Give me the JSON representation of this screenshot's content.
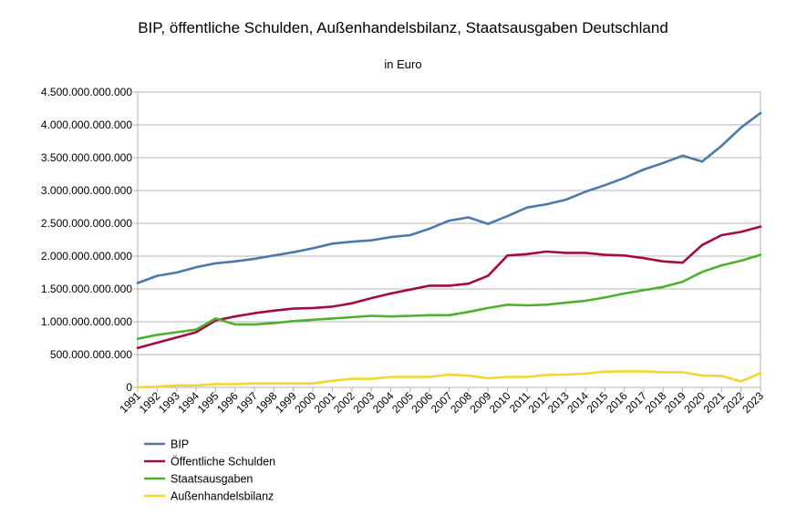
{
  "chart_data": {
    "type": "line",
    "title": "BIP, öffentliche Schulden, Außenhandelsbilanz, Staatsausgaben Deutschland",
    "subtitle": "in Euro",
    "xlabel": "",
    "ylabel": "",
    "ylim": [
      0,
      4500000000000
    ],
    "y_ticks": [
      0,
      500000000000,
      1000000000000,
      1500000000000,
      2000000000000,
      2500000000000,
      3000000000000,
      3500000000000,
      4000000000000,
      4500000000000
    ],
    "y_tick_labels": [
      "0",
      "500.000.000.000",
      "1.000.000.000.000",
      "1.500.000.000.000",
      "2.000.000.000.000",
      "2.500.000.000.000",
      "3.000.000.000.000",
      "3.500.000.000.000",
      "4.000.000.000.000",
      "4.500.000.000.000"
    ],
    "grid": "horizontal",
    "legend_position": "bottom-left",
    "categories": [
      "1991",
      "1992",
      "1993",
      "1994",
      "1995",
      "1996",
      "1997",
      "1998",
      "1999",
      "2000",
      "2001",
      "2002",
      "2003",
      "2004",
      "2005",
      "2006",
      "2007",
      "2008",
      "2009",
      "2010",
      "2011",
      "2012",
      "2013",
      "2014",
      "2015",
      "2016",
      "2017",
      "2018",
      "2019",
      "2020",
      "2021",
      "2022",
      "2023"
    ],
    "series": [
      {
        "name": "BIP",
        "color": "#4e79a7",
        "values": [
          1590000000000,
          1700000000000,
          1750000000000,
          1830000000000,
          1890000000000,
          1920000000000,
          1960000000000,
          2010000000000,
          2060000000000,
          2120000000000,
          2190000000000,
          2220000000000,
          2240000000000,
          2290000000000,
          2320000000000,
          2420000000000,
          2540000000000,
          2590000000000,
          2490000000000,
          2610000000000,
          2740000000000,
          2790000000000,
          2860000000000,
          2980000000000,
          3080000000000,
          3190000000000,
          3320000000000,
          3420000000000,
          3530000000000,
          3440000000000,
          3680000000000,
          3960000000000,
          4180000000000
        ]
      },
      {
        "name": "Öffentliche Schulden",
        "color": "#a50a48",
        "values": [
          600000000000,
          680000000000,
          760000000000,
          840000000000,
          1020000000000,
          1080000000000,
          1130000000000,
          1170000000000,
          1200000000000,
          1210000000000,
          1230000000000,
          1280000000000,
          1360000000000,
          1430000000000,
          1490000000000,
          1550000000000,
          1550000000000,
          1580000000000,
          1700000000000,
          2010000000000,
          2030000000000,
          2070000000000,
          2050000000000,
          2050000000000,
          2020000000000,
          2010000000000,
          1970000000000,
          1920000000000,
          1900000000000,
          2170000000000,
          2320000000000,
          2370000000000,
          2450000000000
        ]
      },
      {
        "name": "Staatsausgaben",
        "color": "#4fb02e",
        "values": [
          740000000000,
          800000000000,
          840000000000,
          880000000000,
          1050000000000,
          960000000000,
          960000000000,
          980000000000,
          1010000000000,
          1030000000000,
          1050000000000,
          1070000000000,
          1090000000000,
          1080000000000,
          1090000000000,
          1100000000000,
          1100000000000,
          1150000000000,
          1210000000000,
          1260000000000,
          1250000000000,
          1260000000000,
          1290000000000,
          1320000000000,
          1370000000000,
          1430000000000,
          1480000000000,
          1530000000000,
          1610000000000,
          1760000000000,
          1860000000000,
          1930000000000,
          2020000000000
        ]
      },
      {
        "name": "Außenhandelsbilanz",
        "color": "#f2d631",
        "values": [
          0,
          10000000000,
          30000000000,
          30000000000,
          50000000000,
          50000000000,
          60000000000,
          60000000000,
          60000000000,
          60000000000,
          100000000000,
          130000000000,
          130000000000,
          160000000000,
          160000000000,
          160000000000,
          195000000000,
          180000000000,
          140000000000,
          160000000000,
          160000000000,
          190000000000,
          195000000000,
          210000000000,
          240000000000,
          245000000000,
          245000000000,
          230000000000,
          230000000000,
          180000000000,
          175000000000,
          90000000000,
          220000000000
        ]
      }
    ]
  }
}
